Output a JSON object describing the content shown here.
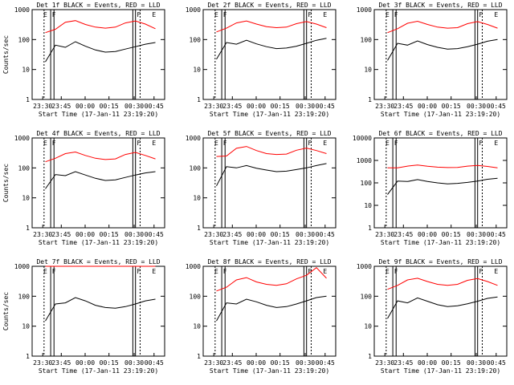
{
  "chart_data": [
    {
      "type": "line",
      "title": "Det 1f BLACK = Events, RED = LLD",
      "ylabel": "Counts/sec",
      "xlabel": "Start Time (17-Jan-11 23:19:20)",
      "ylim": [
        1,
        1000
      ],
      "yscale": "log",
      "yticks": [
        "1",
        "10",
        "100",
        "1000"
      ],
      "xticks": [
        "23:30",
        "23:45",
        "00:00",
        "00:15",
        "00:30",
        "00:45"
      ],
      "events": [
        "E",
        "F",
        "F",
        "E"
      ],
      "series": [
        {
          "name": "BLACK = Events",
          "color": "#000000",
          "values": [
            18,
            65,
            55,
            85,
            60,
            45,
            38,
            40,
            48,
            58,
            70,
            80
          ]
        },
        {
          "name": "RED = LLD",
          "color": "#ff0000",
          "values": [
            170,
            220,
            380,
            430,
            320,
            260,
            240,
            260,
            360,
            420,
            330,
            230
          ]
        }
      ]
    },
    {
      "type": "line",
      "title": "Det 2f BLACK = Events, RED = LLD",
      "ylabel": "",
      "xlabel": "Start Time (17-Jan-11 23:19:20)",
      "ylim": [
        1,
        1000
      ],
      "yscale": "log",
      "yticks": [
        "1",
        "10",
        "100",
        "1000"
      ],
      "xticks": [
        "23:30",
        "23:45",
        "00:00",
        "00:15",
        "00:30",
        "00:45"
      ],
      "events": [
        "E",
        "F",
        "F",
        "E"
      ],
      "series": [
        {
          "name": "BLACK = Events",
          "color": "#000000",
          "values": [
            22,
            80,
            70,
            95,
            72,
            58,
            50,
            52,
            60,
            75,
            95,
            110
          ]
        },
        {
          "name": "RED = LLD",
          "color": "#ff0000",
          "values": [
            180,
            240,
            360,
            420,
            330,
            270,
            250,
            260,
            340,
            400,
            330,
            250
          ]
        }
      ]
    },
    {
      "type": "line",
      "title": "Det 3f BLACK = Events, RED = LLD",
      "ylabel": "",
      "xlabel": "Start Time (17-Jan-11 23:19:20)",
      "ylim": [
        1,
        1000
      ],
      "yscale": "log",
      "yticks": [
        "1",
        "10",
        "100",
        "1000"
      ],
      "xticks": [
        "23:30",
        "23:45",
        "00:00",
        "00:15",
        "00:30",
        "00:45"
      ],
      "events": [
        "E",
        "F",
        "F",
        "E"
      ],
      "series": [
        {
          "name": "BLACK = Events",
          "color": "#000000",
          "values": [
            20,
            75,
            65,
            90,
            68,
            55,
            48,
            50,
            58,
            70,
            88,
            100
          ]
        },
        {
          "name": "RED = LLD",
          "color": "#ff0000",
          "values": [
            170,
            230,
            350,
            410,
            320,
            260,
            240,
            250,
            340,
            400,
            320,
            240
          ]
        }
      ]
    },
    {
      "type": "line",
      "title": "Det 4f BLACK = Events, RED = LLD",
      "ylabel": "Counts/sec",
      "xlabel": "Start Time (17-Jan-11 23:19:20)",
      "ylim": [
        1,
        1000
      ],
      "yscale": "log",
      "yticks": [
        "1",
        "10",
        "100",
        "1000"
      ],
      "xticks": [
        "23:30",
        "23:45",
        "00:00",
        "00:15",
        "00:30",
        "00:45"
      ],
      "events": [
        "E",
        "F",
        "F",
        "E"
      ],
      "series": [
        {
          "name": "BLACK = Events",
          "color": "#000000",
          "values": [
            20,
            60,
            55,
            75,
            58,
            45,
            38,
            40,
            48,
            58,
            68,
            75
          ]
        },
        {
          "name": "RED = LLD",
          "color": "#ff0000",
          "values": [
            160,
            210,
            300,
            340,
            260,
            210,
            190,
            200,
            280,
            330,
            260,
            200
          ]
        }
      ]
    },
    {
      "type": "line",
      "title": "Det 5f BLACK = Events, RED = LLD",
      "ylabel": "",
      "xlabel": "Start Time (17-Jan-11 23:19:20)",
      "ylim": [
        1,
        1000
      ],
      "yscale": "log",
      "yticks": [
        "1",
        "10",
        "100",
        "1000"
      ],
      "xticks": [
        "23:30",
        "23:45",
        "00:00",
        "00:15",
        "00:30",
        "00:45"
      ],
      "events": [
        "E",
        "F",
        "F",
        "E"
      ],
      "series": [
        {
          "name": "BLACK = Events",
          "color": "#000000",
          "values": [
            25,
            110,
            100,
            120,
            98,
            85,
            75,
            78,
            88,
            100,
            120,
            140
          ]
        },
        {
          "name": "RED = LLD",
          "color": "#ff0000",
          "values": [
            240,
            250,
            450,
            520,
            380,
            300,
            280,
            290,
            390,
            460,
            380,
            300
          ]
        }
      ]
    },
    {
      "type": "line",
      "title": "Det 6f BLACK = Events, RED = LLD",
      "ylabel": "",
      "xlabel": "Start Time (17-Jan-11 23:19:20)",
      "ylim": [
        1,
        10000
      ],
      "yscale": "log",
      "yticks": [
        "1",
        "10",
        "100",
        "1000",
        "10000"
      ],
      "xticks": [
        "23:30",
        "23:45",
        "00:00",
        "00:15",
        "00:30",
        "00:45"
      ],
      "events": [
        "E",
        "F",
        "F",
        "E"
      ],
      "series": [
        {
          "name": "BLACK = Events",
          "color": "#000000",
          "values": [
            30,
            120,
            115,
            140,
            115,
            100,
            90,
            95,
            105,
            120,
            145,
            160
          ]
        },
        {
          "name": "RED = LLD",
          "color": "#ff0000",
          "values": [
            470,
            470,
            560,
            620,
            550,
            500,
            480,
            490,
            560,
            600,
            540,
            470
          ]
        }
      ]
    },
    {
      "type": "line",
      "title": "Det 7f BLACK = Events, RED = LLD",
      "ylabel": "Counts/sec",
      "xlabel": "Start Time (17-Jan-11 23:19:20)",
      "ylim": [
        1,
        1000
      ],
      "yscale": "log",
      "yticks": [
        "1",
        "10",
        "100",
        "1000"
      ],
      "xticks": [
        "23:30",
        "23:45",
        "00:00",
        "00:15",
        "00:30",
        "00:45"
      ],
      "events": [
        "E",
        "F",
        "F",
        "E"
      ],
      "series": [
        {
          "name": "BLACK = Events",
          "color": "#000000",
          "values": [
            15,
            55,
            60,
            90,
            70,
            50,
            42,
            40,
            45,
            55,
            70,
            80
          ]
        },
        {
          "name": "RED = LLD",
          "color": "#ff0000",
          "values": [
            1000,
            1000,
            1000,
            1000,
            1000,
            1000,
            1000,
            1000,
            1000,
            1000,
            1000,
            1000
          ]
        }
      ]
    },
    {
      "type": "line",
      "title": "Det 8f BLACK = Events, RED = LLD",
      "ylabel": "",
      "xlabel": "Start Time (17-Jan-11 23:19:20)",
      "ylim": [
        1,
        1000
      ],
      "yscale": "log",
      "yticks": [
        "1",
        "10",
        "100",
        "1000"
      ],
      "xticks": [
        "23:30",
        "23:45",
        "00:00",
        "00:15",
        "00:30",
        "00:45"
      ],
      "events": [
        "E",
        "F",
        "F",
        "E"
      ],
      "series": [
        {
          "name": "BLACK = Events",
          "color": "#000000",
          "values": [
            15,
            60,
            55,
            80,
            65,
            50,
            42,
            45,
            55,
            70,
            90,
            100
          ]
        },
        {
          "name": "RED = LLD",
          "color": "#ff0000",
          "values": [
            150,
            200,
            350,
            420,
            300,
            250,
            230,
            260,
            380,
            500,
            900,
            400
          ]
        }
      ]
    },
    {
      "type": "line",
      "title": "Det 9f BLACK = Events, RED = LLD",
      "ylabel": "",
      "xlabel": "Start Time (17-Jan-11 23:19:20)",
      "ylim": [
        1,
        1000
      ],
      "yscale": "log",
      "yticks": [
        "1",
        "10",
        "100",
        "1000"
      ],
      "xticks": [
        "23:30",
        "23:45",
        "00:00",
        "00:15",
        "00:30",
        "00:45"
      ],
      "events": [
        "E",
        "F",
        "F",
        "E"
      ],
      "series": [
        {
          "name": "BLACK = Events",
          "color": "#000000",
          "values": [
            18,
            70,
            60,
            88,
            68,
            52,
            45,
            48,
            56,
            68,
            85,
            95
          ]
        },
        {
          "name": "RED = LLD",
          "color": "#ff0000",
          "values": [
            170,
            230,
            350,
            400,
            310,
            250,
            230,
            250,
            340,
            390,
            310,
            230
          ]
        }
      ]
    }
  ]
}
